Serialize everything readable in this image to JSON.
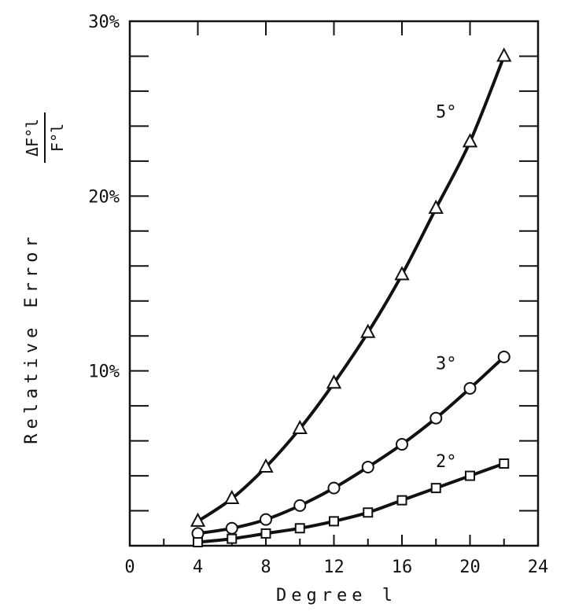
{
  "chart_data": {
    "type": "line",
    "xlabel": "Degree l",
    "ylabel": "Relative Error",
    "ylabel_fraction": {
      "numerator": "ΔF°l",
      "denominator": "F°l"
    },
    "xlim": [
      0,
      24
    ],
    "ylim": [
      0,
      30
    ],
    "x_ticks": [
      {
        "value": 0,
        "label": "0"
      },
      {
        "value": 4,
        "label": "4"
      },
      {
        "value": 8,
        "label": "8"
      },
      {
        "value": 12,
        "label": "12"
      },
      {
        "value": 16,
        "label": "16"
      },
      {
        "value": 20,
        "label": "20"
      },
      {
        "value": 24,
        "label": "24"
      }
    ],
    "y_ticks": [
      {
        "value": 10,
        "label": "10%"
      },
      {
        "value": 20,
        "label": "20%"
      },
      {
        "value": 30,
        "label": "30%"
      }
    ],
    "grid": false,
    "series": [
      {
        "name": "5°",
        "marker": "triangle",
        "x": [
          4,
          6,
          8,
          10,
          12,
          14,
          16,
          18,
          20,
          22
        ],
        "values": [
          1.4,
          2.7,
          4.5,
          6.7,
          9.3,
          12.2,
          15.5,
          19.3,
          23.1,
          28.0
        ]
      },
      {
        "name": "3°",
        "marker": "circle",
        "x": [
          4,
          6,
          8,
          10,
          12,
          14,
          16,
          18,
          20,
          22
        ],
        "values": [
          0.7,
          1.0,
          1.5,
          2.3,
          3.3,
          4.5,
          5.8,
          7.3,
          9.0,
          10.8
        ]
      },
      {
        "name": "2°",
        "marker": "square",
        "x": [
          4,
          6,
          8,
          10,
          12,
          14,
          16,
          18,
          20,
          22
        ],
        "values": [
          0.2,
          0.4,
          0.7,
          1.0,
          1.4,
          1.9,
          2.6,
          3.3,
          4.0,
          4.7
        ]
      }
    ],
    "label_anchor": [
      {
        "series": "5°",
        "x": 18.6,
        "y": 24.5
      },
      {
        "series": "3°",
        "x": 18.6,
        "y": 10.1
      },
      {
        "series": "2°",
        "x": 18.6,
        "y": 4.5
      }
    ]
  }
}
